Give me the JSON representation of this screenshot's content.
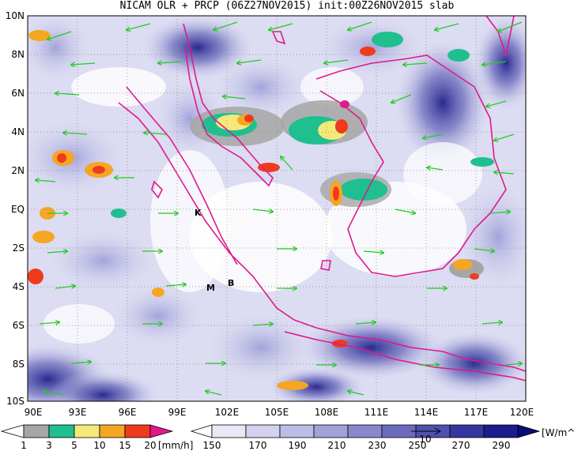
{
  "title": "NICAM OLR + PRCP (06Z27NOV2015) init:00Z26NOV2015 slab",
  "map": {
    "lat_labels": [
      "10N",
      "8N",
      "6N",
      "4N",
      "2N",
      "EQ",
      "2S",
      "4S",
      "6S",
      "8S",
      "10S"
    ],
    "lon_labels": [
      "90E",
      "93E",
      "96E",
      "99E",
      "102E",
      "105E",
      "108E",
      "111E",
      "114E",
      "117E",
      "120E"
    ],
    "markers": [
      {
        "text": "K",
        "lon": 99.9,
        "lat": -0.1
      },
      {
        "text": "M",
        "lon": 100.4,
        "lat": -4.0
      },
      {
        "text": "B",
        "lon": 101.7,
        "lat": -3.8
      }
    ],
    "colors": {
      "coast": "#e0198c",
      "wind": "#22cc22",
      "grid": "#888888"
    }
  },
  "precip_colorbar": {
    "labels": [
      "1",
      "3",
      "5",
      "10",
      "15",
      "20"
    ],
    "unit": "[mm/h]",
    "colors": [
      "#ffffff",
      "#a6a6a6",
      "#1fbf8f",
      "#f5e97a",
      "#f5a623",
      "#f03a1c",
      "#e0198c"
    ]
  },
  "olr_colorbar": {
    "labels": [
      "150",
      "170",
      "190",
      "210",
      "230",
      "250",
      "270",
      "290"
    ],
    "unit": "[W/m^2]",
    "vector_label": "10",
    "colors": [
      "#ffffff",
      "#e8e8f6",
      "#d2d2ee",
      "#bcbce4",
      "#a2a2d8",
      "#8888cc",
      "#6c6cbf",
      "#5050b0",
      "#3535a0",
      "#1c1c8c",
      "#0a0a78"
    ]
  }
}
